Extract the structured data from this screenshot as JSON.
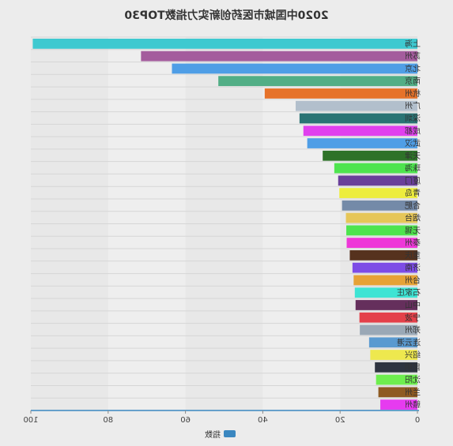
{
  "chart_data": {
    "type": "bar",
    "orientation": "horizontal",
    "mirrored": true,
    "title": "2020中国城市医药创新实力指数TOP30",
    "categories": [
      "上海",
      "苏州",
      "北京",
      "南京",
      "杭州",
      "广州",
      "深圳",
      "成都",
      "武汉",
      "天津",
      "珠海",
      "厦门",
      "青岛",
      "合肥",
      "烟台",
      "无锡",
      "泰州",
      "重庆",
      "济南",
      "台州",
      "石家庄",
      "中山",
      "宁波",
      "郑州",
      "连云港",
      "绍兴",
      "昆明",
      "沈阳",
      "兰州",
      "赣州"
    ],
    "values": [
      99.5,
      71.5,
      63.5,
      51.5,
      39.5,
      31.5,
      30.5,
      29.5,
      28.5,
      24.5,
      21.5,
      20.5,
      20.2,
      19.5,
      18.5,
      18.4,
      18.3,
      17.5,
      16.8,
      16.5,
      16.2,
      16.0,
      15.0,
      14.9,
      12.5,
      12.2,
      11.0,
      10.7,
      10.1,
      9.6
    ],
    "colors": [
      "#3ec9d0",
      "#a45c9d",
      "#4f9ee6",
      "#52ae86",
      "#e6722a",
      "#b2bfcc",
      "#2a7474",
      "#e040ee",
      "#4f9ee6",
      "#2e7228",
      "#4ee44e",
      "#6a3f9a",
      "#eded3e",
      "#748aa8",
      "#e6c658",
      "#4ee44e",
      "#ee37d8",
      "#56321e",
      "#7d4ce6",
      "#e6a236",
      "#3ee4d4",
      "#652f5c",
      "#e4404a",
      "#9aa8b6",
      "#5a9ad0",
      "#eee84e",
      "#2e3440",
      "#6eee4e",
      "#8e5a22",
      "#e63bf0"
    ],
    "xlim": [
      0,
      100
    ],
    "xticks": [
      "0",
      "20",
      "40",
      "60",
      "80",
      "100"
    ],
    "legend": {
      "label": "指数",
      "color": "#3a87c0",
      "position": "bottom"
    },
    "grid": true
  }
}
